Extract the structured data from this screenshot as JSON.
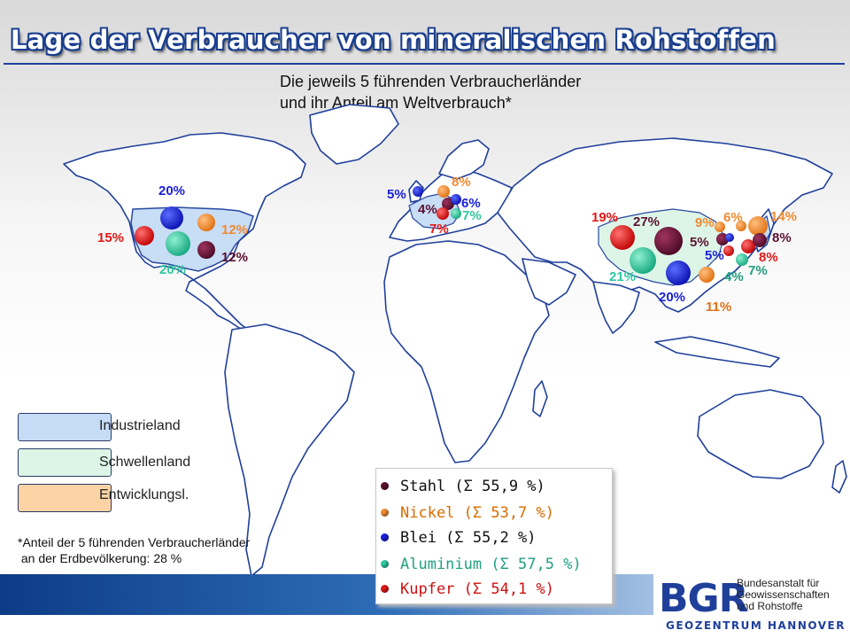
{
  "title": "Lage der Verbraucher von mineralischen Rohstoffen",
  "subtitle_line1": "Die jeweils 5 führenden Verbraucherländer",
  "subtitle_line2": "und ihr Anteil am Weltverbrauch*",
  "legend": {
    "industrieland": {
      "label": "Industrieland",
      "color": "#c6dcf6"
    },
    "schwellenland": {
      "label": "Schwellenland",
      "color": "#dcf5e6"
    },
    "entwicklung": {
      "label": "Entwicklungsl.",
      "color": "#fbd3a4"
    }
  },
  "footnote_line1": "*Anteil der 5 führenden Verbraucherländer",
  "footnote_line2": " an der Erdbevölkerung: 28 %",
  "metals": [
    {
      "id": "stahl",
      "label": "Stahl (Σ 55,9 %)",
      "color": "#5c1030",
      "text_color": "#111111"
    },
    {
      "id": "nickel",
      "label": "Nickel (Σ 53,7 %)",
      "color": "#f08a30",
      "text_color": "#d86c00"
    },
    {
      "id": "blei",
      "label": "Blei (Σ 55,2 %)",
      "color": "#1a22d8",
      "text_color": "#111111"
    },
    {
      "id": "aluminium",
      "label": "Aluminium (Σ 57,5 %)",
      "color": "#2ec8a0",
      "text_color": "#20a080"
    },
    {
      "id": "kupfer",
      "label": "Kupfer (Σ 54,1 %)",
      "color": "#e01818",
      "text_color": "#cc1111"
    }
  ],
  "map_labels": {
    "usa_blei": "20%",
    "usa_kupfer": "15%",
    "usa_nickel": "12%",
    "usa_stahl": "12%",
    "usa_alu": "20%",
    "eu_blei": "5%",
    "eu_nickel": "8%",
    "eu_stahl": "4%",
    "eu_blei2": "6%",
    "eu_kupfer": "7%",
    "eu_alu": "7%",
    "cn_kupfer": "19%",
    "cn_stahl": "27%",
    "cn_alu": "21%",
    "cn_blei": "20%",
    "cn_nickel": "11%",
    "ea_nickel1": "9%",
    "ea_nickel2": "6%",
    "ea_nickel3": "14%",
    "ea_stahl1": "5%",
    "ea_stahl2": "8%",
    "ea_blei": "5%",
    "ea_kupfer": "8%",
    "ea_alu1": "7%",
    "ea_alu2": "4%"
  },
  "logo": {
    "abbr": "BGR",
    "name_line1": "Bundesanstalt für",
    "name_line2": "Geowissenschaften",
    "name_line3": "und Rohstoffe",
    "sub": "GEOZENTRUM HANNOVER"
  }
}
